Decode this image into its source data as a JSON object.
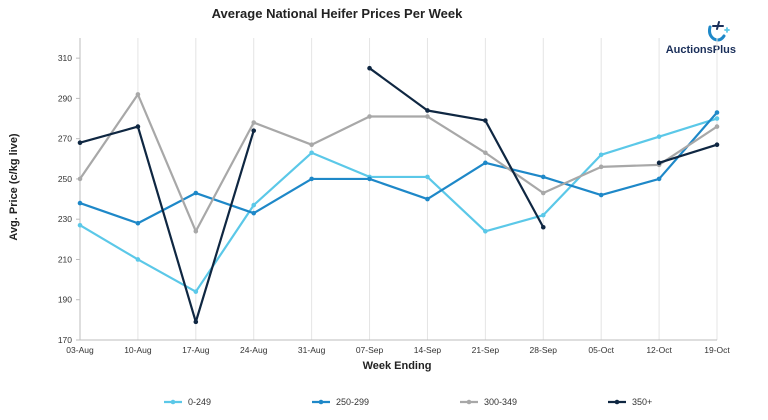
{
  "chart_data": {
    "type": "line",
    "title": "Average National Heifer Prices Per Week",
    "xlabel": "Week Ending",
    "ylabel": "Avg. Price (c/kg live)",
    "ylim": [
      170,
      320
    ],
    "yticks": [
      170,
      190,
      210,
      230,
      250,
      270,
      290,
      310
    ],
    "categories": [
      "03-Aug",
      "10-Aug",
      "17-Aug",
      "24-Aug",
      "31-Aug",
      "07-Sep",
      "14-Sep",
      "21-Sep",
      "28-Sep",
      "05-Oct",
      "12-Oct",
      "19-Oct"
    ],
    "grid": "vertical",
    "legend_position": "bottom",
    "series": [
      {
        "name": "0-249",
        "color": "#5bc8e8",
        "values": [
          227,
          210,
          194,
          237,
          263,
          251,
          251,
          224,
          232,
          262,
          271,
          280
        ]
      },
      {
        "name": "250-299",
        "color": "#1e88c8",
        "values": [
          238,
          228,
          243,
          233,
          250,
          250,
          240,
          258,
          251,
          242,
          250,
          283
        ]
      },
      {
        "name": "300-349",
        "color": "#a8a8a8",
        "values": [
          250,
          292,
          224,
          278,
          267,
          281,
          281,
          263,
          243,
          256,
          257,
          276
        ]
      },
      {
        "name": "350+",
        "color": "#0f2742",
        "values": [
          268,
          276,
          179,
          274,
          null,
          305,
          284,
          279,
          226,
          null,
          258,
          267
        ]
      }
    ]
  },
  "logo": {
    "brand_text": "AuctionsPlus",
    "icon": "auctionsplus-logo-icon"
  }
}
